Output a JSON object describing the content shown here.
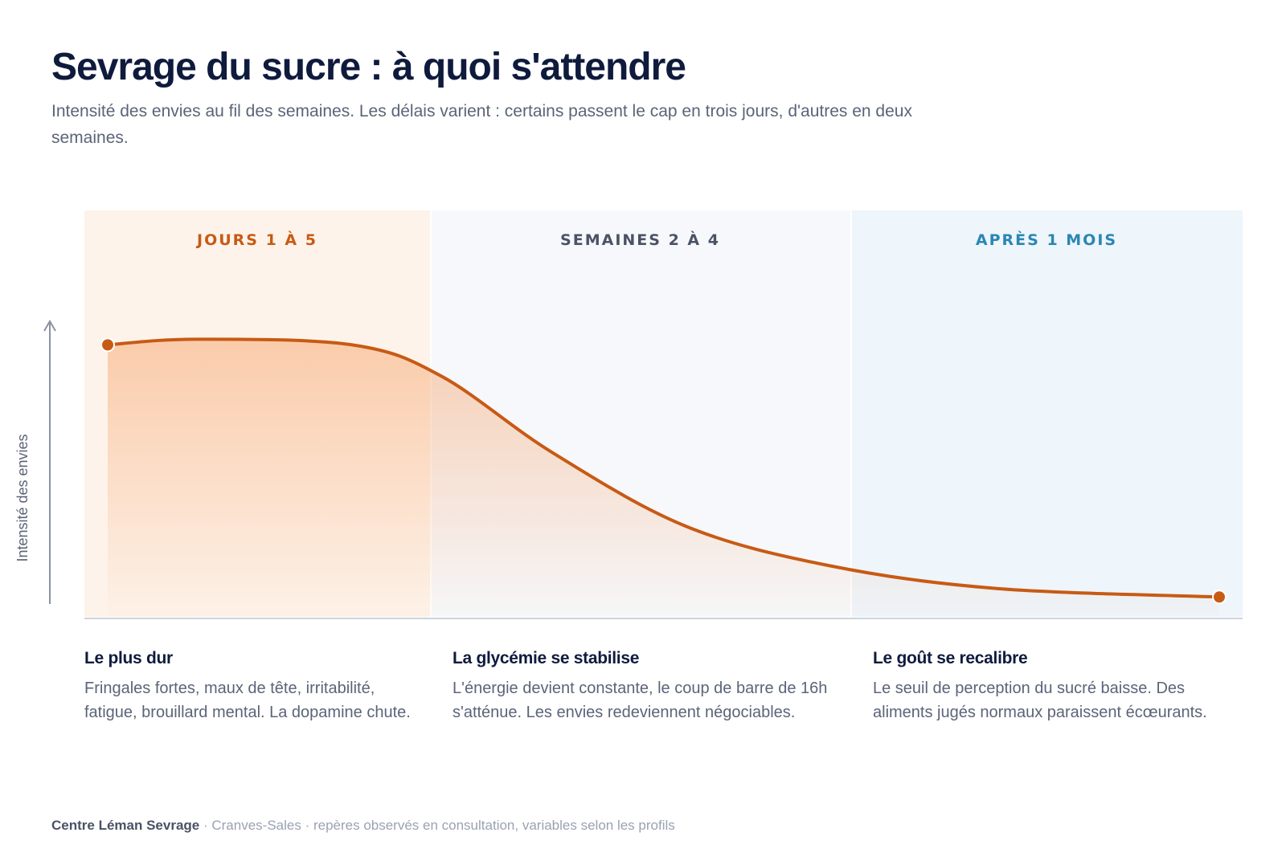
{
  "header": {
    "title": "Sevrage du sucre : à quoi s'attendre",
    "subtitle": "Intensité des envies au fil des semaines. Les délais varient : certains passent le cap en trois jours, d'autres en deux semaines."
  },
  "chart_data": {
    "type": "area",
    "ylabel": "Intensité des envies",
    "phases": [
      {
        "label": "JOURS 1 À 5",
        "color": "#c85a14",
        "band": "#fdf3ea"
      },
      {
        "label": "SEMAINES 2 À 4",
        "color": "#4a5266",
        "band": "#f6f8fb"
      },
      {
        "label": "APRÈS 1 MOIS",
        "color": "#2a86b4",
        "band": "#eef5fb"
      }
    ],
    "series": [
      {
        "line_color": "#c85a14",
        "values": [
          {
            "x": 0.0,
            "y": 0.96
          },
          {
            "x": 0.08,
            "y": 0.98
          },
          {
            "x": 0.22,
            "y": 0.96
          },
          {
            "x": 0.3,
            "y": 0.85
          },
          {
            "x": 0.4,
            "y": 0.58
          },
          {
            "x": 0.52,
            "y": 0.32
          },
          {
            "x": 0.65,
            "y": 0.18
          },
          {
            "x": 0.8,
            "y": 0.1
          },
          {
            "x": 1.0,
            "y": 0.07
          }
        ]
      }
    ],
    "ylim": [
      0,
      1.1
    ],
    "grid": false
  },
  "descriptions": [
    {
      "title": "Le plus dur",
      "text": "Fringales fortes, maux de tête, irritabilité, fatigue, brouillard mental. La dopamine chute."
    },
    {
      "title": "La glycémie se stabilise",
      "text": "L'énergie devient constante, le coup de barre de 16h s'atténue. Les envies redeviennent négociables."
    },
    {
      "title": "Le goût se recalibre",
      "text": "Le seuil de perception du sucré baisse. Des aliments jugés normaux paraissent écœurants."
    }
  ],
  "footer": {
    "brand": "Centre Léman Sevrage",
    "text": " · Cranves-Sales · repères observés en consultation, variables selon les profils"
  }
}
